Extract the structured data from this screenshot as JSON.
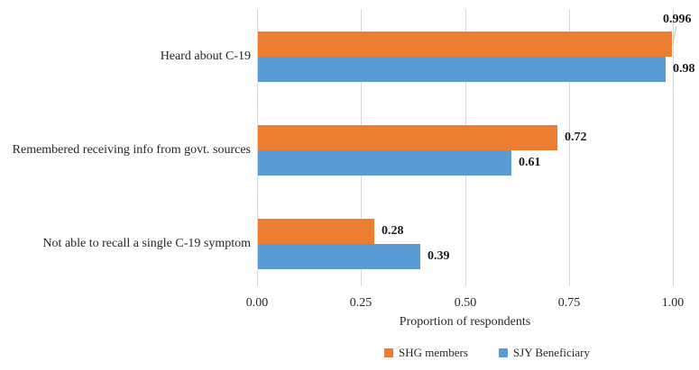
{
  "chart_data": {
    "type": "bar",
    "orientation": "horizontal",
    "title": "",
    "categories": [
      "Heard about C-19",
      "Remembered receiving info from govt. sources",
      "Not able to recall a single C-19 symptom"
    ],
    "series": [
      {
        "name": "SHG members",
        "color": "#ED7D31",
        "values": [
          0.996,
          0.72,
          0.28
        ],
        "labels": [
          "0.996",
          "0.72",
          "0.28"
        ]
      },
      {
        "name": "SJY Beneficiary",
        "color": "#5B9BD5",
        "values": [
          0.98,
          0.61,
          0.39
        ],
        "labels": [
          "0.98",
          "0.61",
          "0.39"
        ]
      }
    ],
    "xlabel": "Proportion of respondents",
    "xlim": [
      0,
      1
    ],
    "xticks": [
      0,
      0.25,
      0.5,
      0.75,
      1
    ],
    "xtick_labels": [
      "0.00",
      "0.25",
      "0.50",
      "0.75",
      "1.00"
    ],
    "grid": true,
    "legend_position": "bottom",
    "gridline_color": "#d9d9d9",
    "leader_line_color": "#bfbfbf",
    "text_color": "#262626",
    "data_label_color": "#1a1a1a"
  }
}
